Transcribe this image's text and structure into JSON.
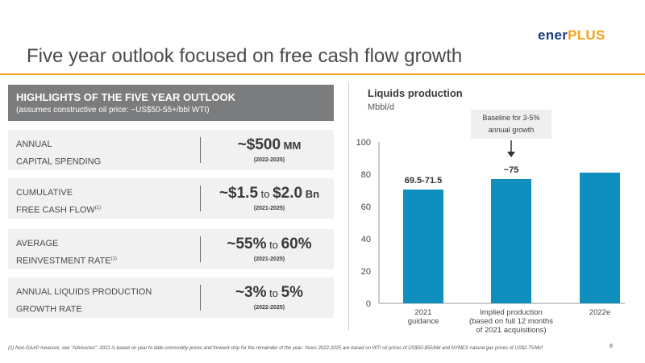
{
  "brand": {
    "logo_part1": "ener",
    "logo_part2": "PLUS"
  },
  "title": "Five year outlook focused on free cash flow growth",
  "highlights": {
    "title": "HIGHLIGHTS OF THE FIVE YEAR OUTLOOK",
    "subtitle": "(assumes constructive oil price: ~US$50-55+/bbl WTI)"
  },
  "metrics": [
    {
      "label_line1": "ANNUAL",
      "label_line2": "CAPITAL SPENDING",
      "label_sup": "",
      "value_a": "~$500",
      "value_to": "",
      "value_b": "",
      "value_unit": " MM",
      "period": "(2022-2025)"
    },
    {
      "label_line1": "CUMULATIVE",
      "label_line2": "FREE CASH FLOW",
      "label_sup": "(1)",
      "value_a": "~$1.5",
      "value_to": " to ",
      "value_b": "$2.0",
      "value_unit": " Bn",
      "period": "(2021-2025)"
    },
    {
      "label_line1": "AVERAGE",
      "label_line2": "REINVESTMENT RATE",
      "label_sup": "(1)",
      "value_a": "~55%",
      "value_to": " to ",
      "value_b": "60%",
      "value_unit": "",
      "period": "(2021-2025)"
    },
    {
      "label_line1": "ANNUAL LIQUIDS PRODUCTION",
      "label_line2": "GROWTH RATE",
      "label_sup": "",
      "value_a": "~3%",
      "value_to": " to ",
      "value_b": "5%",
      "value_unit": "",
      "period": "(2022-2025)"
    }
  ],
  "callout": {
    "line1": "Baseline for 3-5%",
    "line2": "annual growth"
  },
  "chart_data": {
    "type": "bar",
    "title": "Liquids production",
    "ylabel": "Mbbl/d",
    "xlabel": "",
    "ylim": [
      0,
      100
    ],
    "yticks": [
      0,
      20,
      40,
      60,
      80,
      100
    ],
    "grid": false,
    "categories": [
      [
        "2021",
        "guidance"
      ],
      [
        "Implied production",
        "(based on full 12 months",
        "of 2021 acquisitions)"
      ],
      [
        "2022e"
      ]
    ],
    "values": [
      70.5,
      77,
      81
    ],
    "data_labels": [
      "69.5-71.5",
      "~75",
      ""
    ],
    "bar_color": "#0e8fbd"
  },
  "footnote": "(1)  Non-GAAP measure, see \"Advisories\".  2021 is based on year to date commodity prices and forward strip for the remainder of the year. Years 2022-2025 are based on WTI oil prices of US$50-$55/bbl and NYMEX natural gas prices of US$2.75/Mcf",
  "page_number": "8"
}
